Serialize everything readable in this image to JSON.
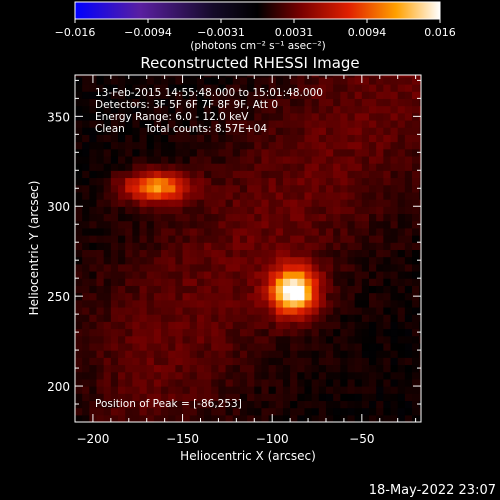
{
  "chart_data": {
    "type": "heatmap",
    "title": "Reconstructed RHESSI Image",
    "xlabel": "Heliocentric X (arcsec)",
    "ylabel": "Heliocentric Y (arcsec)",
    "xlim": [
      -210,
      -17
    ],
    "ylim": [
      180,
      373
    ],
    "x_ticks": [
      -200,
      -150,
      -100,
      -50
    ],
    "y_ticks": [
      200,
      250,
      300,
      350
    ],
    "colorbar": {
      "min": -0.016,
      "max": 0.016,
      "ticks": [
        "−0.016",
        "−0.0094",
        "−0.0031",
        "0.0031",
        "0.0094",
        "0.016"
      ],
      "unit_label": "(photons cm⁻² s⁻¹ asec⁻²)",
      "colors": [
        "#0000ff",
        "#5a1fa0",
        "#140a28",
        "#000000",
        "#7a0000",
        "#e02000",
        "#ffa000",
        "#ffffff"
      ]
    },
    "sources": [
      {
        "x": -88,
        "y": 253,
        "intensity": 0.016,
        "sx": 9,
        "sy": 9
      },
      {
        "x": -165,
        "y": 311,
        "intensity": 0.011,
        "sx": 13,
        "sy": 6
      }
    ]
  },
  "annotations": {
    "time_range": "13-Feb-2015 14:55:48.000 to 15:01:48.000",
    "detectors": "Detectors: 3F 5F 6F 7F 8F 9F, Att 0",
    "energy": "Energy Range: 6.0 - 12.0 keV",
    "method": "Clean",
    "counts": "Total counts: 8.57E+04",
    "peak": "Position of Peak = [-86,253]"
  },
  "footer": {
    "date": "18-May-2022 23:07"
  }
}
